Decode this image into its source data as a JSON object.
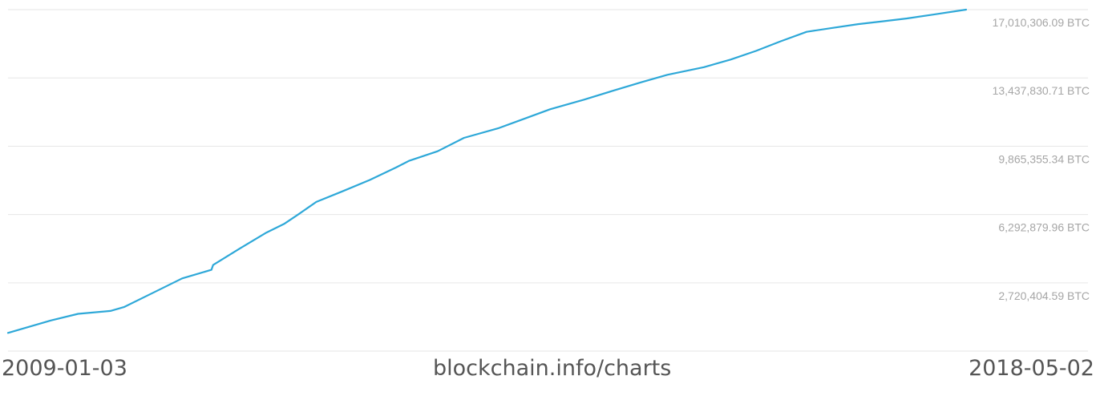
{
  "chart_data": {
    "type": "line",
    "title": "",
    "xlabel": "",
    "ylabel": "",
    "ylim": [
      -851340.78,
      17010306.09
    ],
    "xlim": [
      "2009-01-03",
      "2018-05-02"
    ],
    "y_ticks": [
      {
        "value": 17010306.09,
        "label": "17,010,306.09 BTC"
      },
      {
        "value": 13437830.71,
        "label": "13,437,830.71 BTC"
      },
      {
        "value": 9865355.34,
        "label": "9,865,355.34 BTC"
      },
      {
        "value": 6292879.96,
        "label": "6,292,879.96 BTC"
      },
      {
        "value": 2720404.59,
        "label": "2,720,404.59 BTC"
      }
    ],
    "grid": true,
    "color": "#2ea8d8",
    "series": [
      {
        "name": "",
        "x": [
          "2009-01-03",
          "2009-06-04",
          "2009-09-09",
          "2010-01-02",
          "2010-02-19",
          "2010-06-03",
          "2010-09-14",
          "2010-12-27",
          "2011-01-02",
          "2011-04-05",
          "2011-07-11",
          "2011-09-11",
          "2011-11-01",
          "2012-01-04",
          "2012-04-05",
          "2012-07-12",
          "2012-10-13",
          "2012-11-28",
          "2013-03-10",
          "2013-06-12",
          "2013-10-11",
          "2014-01-12",
          "2014-04-14",
          "2014-08-13",
          "2014-11-20",
          "2015-03-01",
          "2015-06-05",
          "2015-10-13",
          "2016-01-16",
          "2016-04-15",
          "2016-07-11",
          "2016-10-12",
          "2017-01-10",
          "2017-04-13",
          "2017-07-09",
          "2017-10-04",
          "2018-01-05",
          "2018-05-02"
        ],
        "values": [
          100000,
          750000,
          1100000,
          1250000,
          1450000,
          2200000,
          2950000,
          3400000,
          3650000,
          4500000,
          5350000,
          5800000,
          6300000,
          6950000,
          7500000,
          8100000,
          8750000,
          9100000,
          9600000,
          10300000,
          10800000,
          11300000,
          11800000,
          12300000,
          12750000,
          13200000,
          13600000,
          14000000,
          14400000,
          14850000,
          15350000,
          15850000,
          16050000,
          16250000,
          16400000,
          16550000,
          16750000,
          17010306.09
        ]
      }
    ]
  },
  "footer": {
    "start_date": "2009-01-03",
    "source": "blockchain.info/charts",
    "end_date": "2018-05-02"
  }
}
